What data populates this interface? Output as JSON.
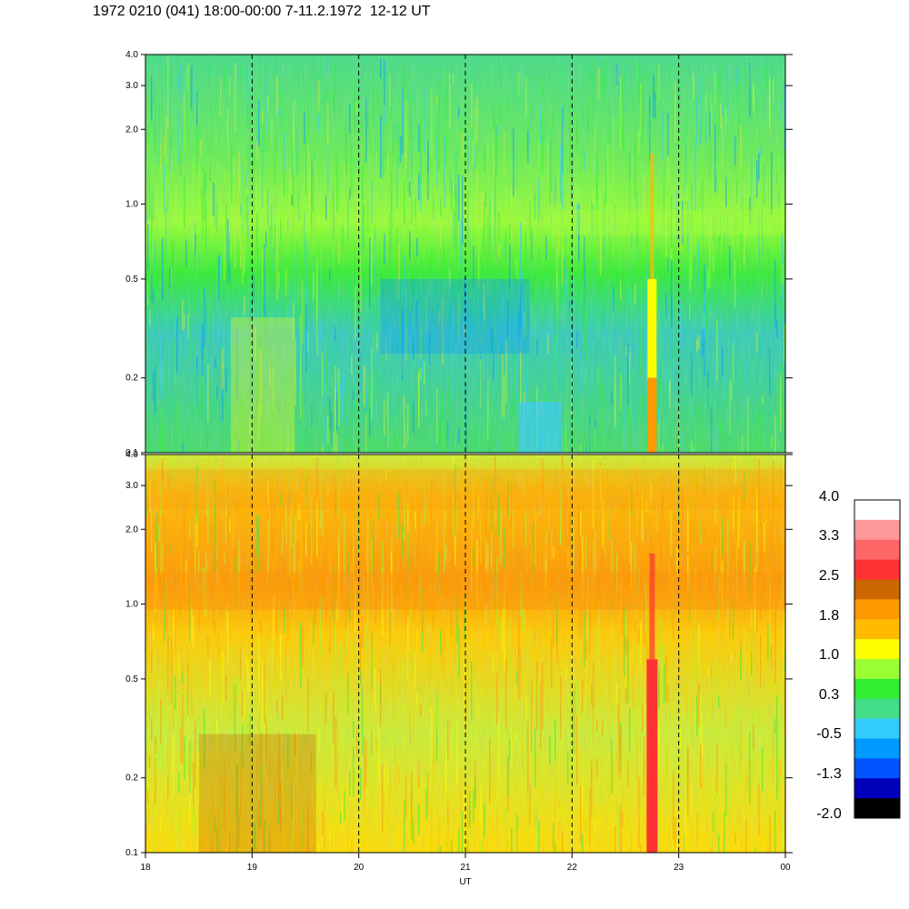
{
  "title": "1972 0210 (041) 18:00-00:00 7-11.2.1972  12-12 UT",
  "chart_data": {
    "type": "heatmap",
    "title": "1972 0210 (041) 18:00-00:00 7-11.2.1972  12-12 UT",
    "xlabel": "UT",
    "x_ticks": [
      "18",
      "19",
      "20",
      "21",
      "22",
      "23",
      "00"
    ],
    "x_range_hours": [
      18,
      24
    ],
    "panels": [
      {
        "name": "",
        "ylabel": "",
        "y_scale": "log",
        "ylim": [
          0.1,
          4.0
        ],
        "y_ticks": [
          "0.1",
          "0.2",
          "0.5",
          "1.0",
          "2.0",
          "3.0",
          "4.0"
        ],
        "y_tick_values": [
          0.1,
          0.2,
          0.5,
          1.0,
          2.0,
          3.0,
          4.0
        ],
        "dominant_levels": [
          -0.5,
          0.3,
          1.0
        ]
      },
      {
        "name": "",
        "ylabel": "",
        "y_scale": "log",
        "ylim": [
          0.1,
          4.0
        ],
        "y_ticks": [
          "0.1",
          "0.2",
          "0.5",
          "1.0",
          "2.0",
          "3.0",
          "4.0"
        ],
        "y_tick_values": [
          0.1,
          0.2,
          0.5,
          1.0,
          2.0,
          3.0,
          4.0
        ],
        "dominant_levels": [
          0.3,
          1.0,
          1.8
        ]
      }
    ],
    "dashed_vertical_lines_hours": [
      19,
      20,
      21,
      22,
      23
    ],
    "colorbar": {
      "labels": [
        "4.0",
        "3.3",
        "2.5",
        "1.8",
        "1.0",
        "0.3",
        "-0.5",
        "-1.3",
        "-2.0"
      ],
      "colors": [
        "#ffffff",
        "#ff9999",
        "#ff6666",
        "#ff3333",
        "#cc6600",
        "#ff9900",
        "#ffbb00",
        "#ffff00",
        "#99ff33",
        "#33ee33",
        "#44dd88",
        "#33ccff",
        "#0099ff",
        "#0055ff",
        "#0000bb",
        "#000000"
      ]
    },
    "features": [
      {
        "type": "burst",
        "hour": 22.75,
        "panel": 1,
        "level": 2.5
      },
      {
        "type": "burst",
        "hour": 22.75,
        "panel": 0,
        "level": 1.8
      }
    ]
  }
}
